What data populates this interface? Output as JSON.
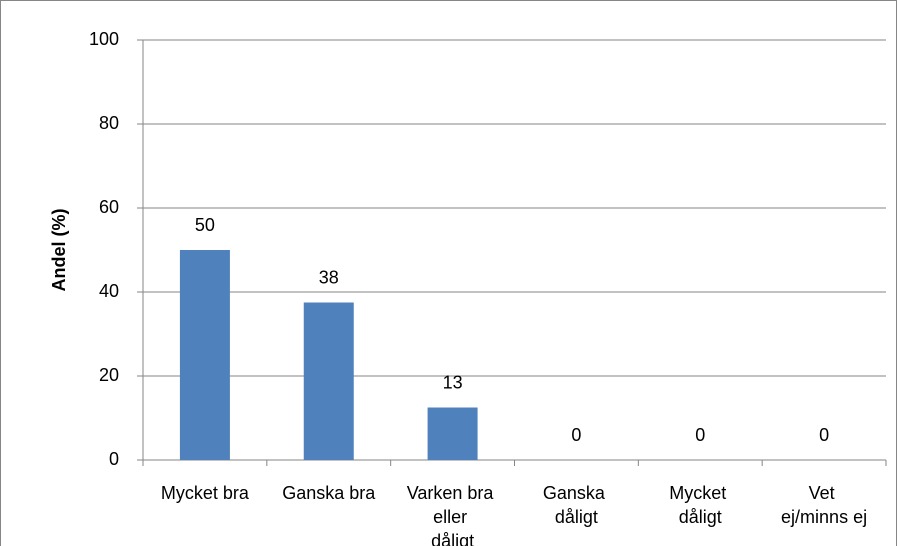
{
  "chart_data": {
    "type": "bar",
    "y_label": "Andel (%)",
    "categories": [
      "Mycket bra",
      "Ganska bra",
      "Varken bra eller dåligt",
      "Ganska dåligt",
      "Mycket dåligt",
      "Vet ej/minns ej"
    ],
    "values": [
      50,
      37.5,
      12.5,
      0,
      0,
      0
    ],
    "value_labels": [
      "50",
      "38",
      "13",
      "0",
      "0",
      "0"
    ],
    "color": "#4f81bd",
    "ylim": [
      0,
      100
    ],
    "yticks": [
      0,
      20,
      40,
      60,
      80,
      100
    ],
    "grid": true
  }
}
